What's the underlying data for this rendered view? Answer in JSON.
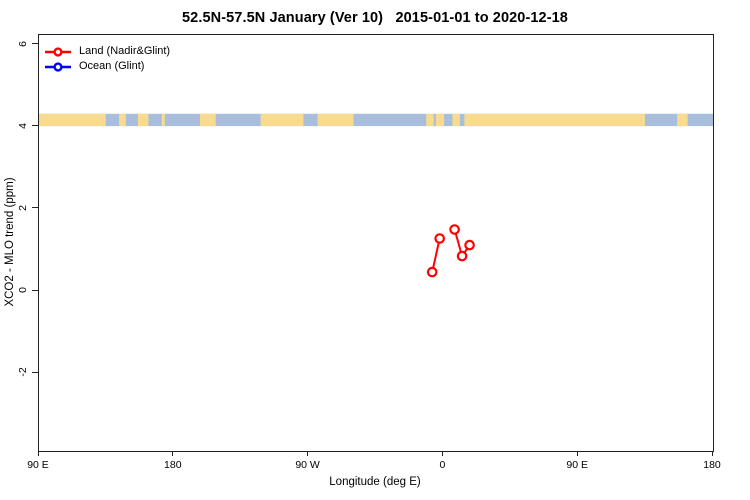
{
  "legend": {
    "items": [
      {
        "label": "Land (Nadir&Glint)",
        "color": "#ff0000"
      },
      {
        "label": "Ocean (Glint)",
        "color": "#0000ff"
      }
    ]
  },
  "axes": {
    "x": {
      "ticks": [
        {
          "value": 90,
          "label": "90 E"
        },
        {
          "value": 180,
          "label": "180"
        },
        {
          "value": 270,
          "label": "90 W"
        },
        {
          "value": 360,
          "label": "0"
        },
        {
          "value": 450,
          "label": "90 E"
        },
        {
          "value": 540,
          "label": "180"
        }
      ]
    },
    "y": {
      "ticks": [
        {
          "value": -2,
          "label": "-2"
        },
        {
          "value": 0,
          "label": "0"
        },
        {
          "value": 2,
          "label": "2"
        },
        {
          "value": 4,
          "label": "4"
        },
        {
          "value": 6,
          "label": "6"
        }
      ]
    }
  },
  "chart_data": {
    "type": "line",
    "title": "52.5N-57.5N January (Ver 10)   2015-01-01 to 2020-12-18",
    "xlabel": "Longitude (deg E)",
    "ylabel": "XCO2 - MLO trend (ppm)",
    "xlim": [
      90,
      540
    ],
    "ylim": [
      -3.9,
      6.24
    ],
    "x_axis_note": "longitude axis wraps eastward: 90E to 180 to 90W to 0 to 90E to 180",
    "grid": false,
    "legend_position": "top-left",
    "series": [
      {
        "name": "Land (Nadir&Glint)",
        "color": "#ff0000",
        "marker": "open-circle",
        "segments": [
          [
            {
              "lon": -7.5,
              "ppm": 0.46
            },
            {
              "lon": -2.5,
              "ppm": 1.28
            }
          ],
          [
            {
              "lon": 7.5,
              "ppm": 1.5
            },
            {
              "lon": 12.5,
              "ppm": 0.85
            },
            {
              "lon": 17.5,
              "ppm": 1.12
            }
          ]
        ]
      },
      {
        "name": "Ocean (Glint)",
        "color": "#0000ff",
        "marker": "open-circle",
        "segments": []
      }
    ],
    "map_band": {
      "v_top": 4.32,
      "v_bottom": 4.02,
      "land_color": "#f8db8e",
      "ocean_color": "#a9bedc",
      "segments": [
        {
          "from": 90,
          "to": 134.5,
          "surface": "land"
        },
        {
          "from": 134.5,
          "to": 143.5,
          "surface": "ocean"
        },
        {
          "from": 143.5,
          "to": 148,
          "surface": "land"
        },
        {
          "from": 148,
          "to": 156,
          "surface": "ocean"
        },
        {
          "from": 156,
          "to": 163,
          "surface": "land"
        },
        {
          "from": 163,
          "to": 172,
          "surface": "ocean"
        },
        {
          "from": 172,
          "to": 174,
          "surface": "land"
        },
        {
          "from": 174,
          "to": 197.5,
          "surface": "ocean"
        },
        {
          "from": 197.5,
          "to": 208,
          "surface": "land"
        },
        {
          "from": 208,
          "to": 238,
          "surface": "ocean"
        },
        {
          "from": 238,
          "to": 266.5,
          "surface": "land"
        },
        {
          "from": 266.5,
          "to": 276,
          "surface": "ocean"
        },
        {
          "from": 276,
          "to": 300,
          "surface": "land"
        },
        {
          "from": 300,
          "to": 348.5,
          "surface": "ocean"
        },
        {
          "from": 348.5,
          "to": 353.5,
          "surface": "land"
        },
        {
          "from": 353.5,
          "to": 355,
          "surface": "ocean"
        },
        {
          "from": 355,
          "to": 360.5,
          "surface": "land"
        },
        {
          "from": 360.5,
          "to": 366,
          "surface": "ocean"
        },
        {
          "from": 366,
          "to": 371,
          "surface": "land"
        },
        {
          "from": 371,
          "to": 374,
          "surface": "ocean"
        },
        {
          "from": 374,
          "to": 494.5,
          "surface": "land"
        },
        {
          "from": 494.5,
          "to": 516,
          "surface": "ocean"
        },
        {
          "from": 516,
          "to": 523,
          "surface": "land"
        },
        {
          "from": 523,
          "to": 540,
          "surface": "ocean"
        }
      ]
    },
    "colors": {
      "axis": "#222222",
      "background": "#ffffff"
    }
  }
}
